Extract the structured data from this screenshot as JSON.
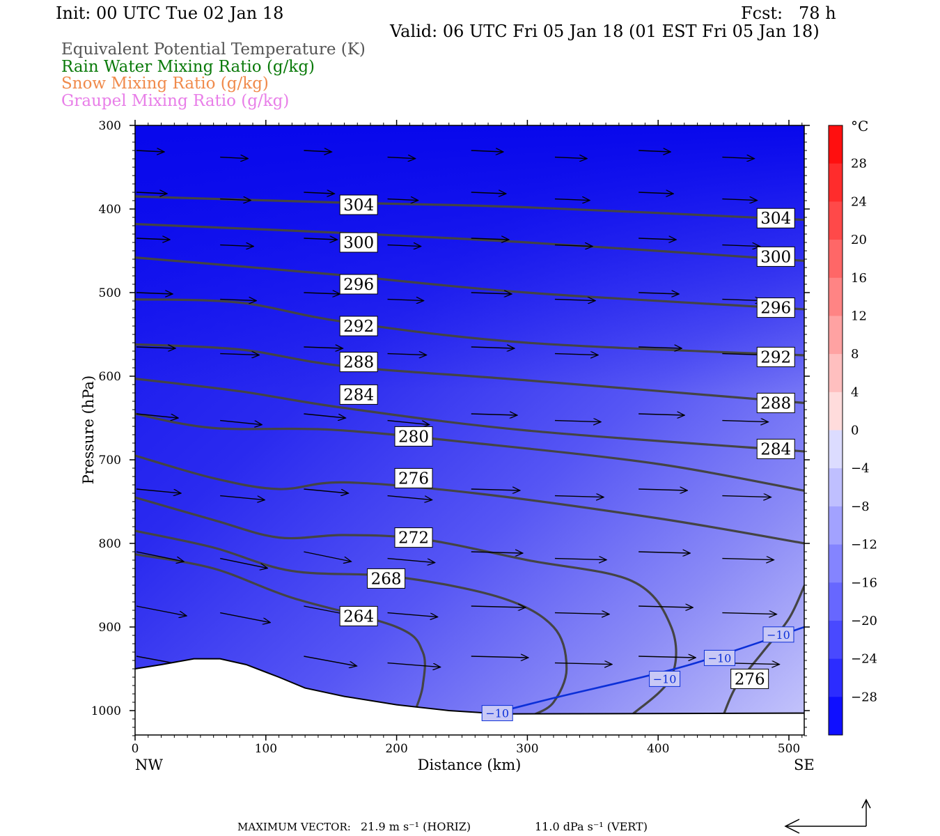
{
  "header": {
    "init": "Init: 00 UTC Tue 02 Jan 18",
    "fcst": "Fcst:   78 h",
    "valid": "Valid: 06 UTC Fri 05 Jan 18 (01 EST Fri 05 Jan 18)"
  },
  "legend": [
    {
      "text": "Equivalent Potential Temperature (K)",
      "color": "#555555"
    },
    {
      "text": "Rain Water Mixing Ratio (g/kg)",
      "color": "#0a7a0a"
    },
    {
      "text": "Snow Mixing Ratio (g/kg)",
      "color": "#f08a4b"
    },
    {
      "text": "Graupel Mixing Ratio (g/kg)",
      "color": "#e87ee8"
    }
  ],
  "footer": {
    "max_vector_label": "MAXIMUM VECTOR:",
    "horiz": "21.9 m s⁻¹ (HORIZ)",
    "vert": "11.0 dPa s⁻¹ (VERT)"
  },
  "chart_data": {
    "type": "cross-section",
    "xlabel": "Distance (km)",
    "ylabel": "Pressure (hPa)",
    "xlim": [
      0,
      512
    ],
    "ylim": [
      1030,
      300
    ],
    "x_ticks": [
      0,
      100,
      200,
      300,
      400,
      500
    ],
    "y_ticks": [
      300,
      400,
      500,
      600,
      700,
      800,
      900,
      1000
    ],
    "x_end_labels": {
      "left": "NW",
      "right": "SE"
    },
    "colorbar": {
      "unit": "°C",
      "ticks": [
        28,
        24,
        20,
        16,
        12,
        8,
        4,
        0,
        -4,
        -8,
        -12,
        -16,
        -20,
        -24,
        -28
      ],
      "range": [
        -32,
        32
      ]
    },
    "theta_e_contours": [
      {
        "value": 304,
        "points": [
          [
            0,
            385
          ],
          [
            150,
            392
          ],
          [
            300,
            398
          ],
          [
            512,
            413
          ]
        ],
        "labels": [
          [
            171,
            395
          ],
          [
            490,
            411
          ]
        ]
      },
      {
        "value": 300,
        "points": [
          [
            0,
            418
          ],
          [
            150,
            428
          ],
          [
            300,
            440
          ],
          [
            512,
            462
          ]
        ],
        "labels": [
          [
            171,
            440
          ],
          [
            490,
            457
          ]
        ]
      },
      {
        "value": 296,
        "points": [
          [
            0,
            458
          ],
          [
            150,
            478
          ],
          [
            300,
            500
          ],
          [
            512,
            520
          ]
        ],
        "labels": [
          [
            171,
            490
          ],
          [
            490,
            518
          ]
        ]
      },
      {
        "value": 292,
        "points": [
          [
            0,
            508
          ],
          [
            80,
            512
          ],
          [
            160,
            535
          ],
          [
            300,
            560
          ],
          [
            512,
            575
          ]
        ],
        "labels": [
          [
            171,
            540
          ],
          [
            490,
            577
          ]
        ]
      },
      {
        "value": 288,
        "points": [
          [
            0,
            562
          ],
          [
            80,
            568
          ],
          [
            160,
            588
          ],
          [
            300,
            605
          ],
          [
            512,
            632
          ]
        ],
        "labels": [
          [
            171,
            583
          ],
          [
            490,
            632
          ]
        ]
      },
      {
        "value": 284,
        "points": [
          [
            0,
            603
          ],
          [
            80,
            618
          ],
          [
            160,
            638
          ],
          [
            300,
            665
          ],
          [
            512,
            690
          ]
        ],
        "labels": [
          [
            171,
            622
          ],
          [
            490,
            687
          ]
        ]
      },
      {
        "value": 280,
        "points": [
          [
            0,
            645
          ],
          [
            60,
            662
          ],
          [
            150,
            664
          ],
          [
            260,
            680
          ],
          [
            400,
            705
          ],
          [
            512,
            737
          ]
        ],
        "labels": [
          [
            213,
            672
          ]
        ]
      },
      {
        "value": 276,
        "points": [
          [
            0,
            695
          ],
          [
            60,
            722
          ],
          [
            110,
            735
          ],
          [
            160,
            727
          ],
          [
            260,
            740
          ],
          [
            400,
            770
          ],
          [
            512,
            800
          ]
        ],
        "labels": [
          [
            213,
            722
          ]
        ]
      },
      {
        "value": 272,
        "points": [
          [
            0,
            745
          ],
          [
            60,
            772
          ],
          [
            110,
            793
          ],
          [
            160,
            790
          ],
          [
            220,
            795
          ],
          [
            300,
            820
          ],
          [
            380,
            845
          ],
          [
            410,
            900
          ],
          [
            410,
            960
          ],
          [
            380,
            1005
          ]
        ],
        "labels": [
          [
            213,
            793
          ]
        ]
      },
      {
        "value": 268,
        "points": [
          [
            0,
            785
          ],
          [
            60,
            805
          ],
          [
            120,
            833
          ],
          [
            200,
            840
          ],
          [
            280,
            865
          ],
          [
            320,
            900
          ],
          [
            330,
            950
          ],
          [
            320,
            990
          ],
          [
            305,
            1005
          ]
        ],
        "labels": [
          [
            192,
            842
          ]
        ]
      },
      {
        "value": 264,
        "points": [
          [
            0,
            813
          ],
          [
            60,
            830
          ],
          [
            120,
            865
          ],
          [
            200,
            900
          ],
          [
            220,
            930
          ],
          [
            220,
            970
          ],
          [
            215,
            997
          ]
        ],
        "labels": [
          [
            171,
            887
          ]
        ]
      },
      {
        "value": 276,
        "points": [
          [
            512,
            850
          ],
          [
            500,
            890
          ],
          [
            480,
            930
          ],
          [
            460,
            970
          ],
          [
            450,
            1005
          ]
        ],
        "labels": [
          [
            470,
            962
          ]
        ]
      }
    ],
    "temperature_contours": [
      {
        "value": -10,
        "points": [
          [
            270,
            1005
          ],
          [
            320,
            985
          ],
          [
            420,
            947
          ],
          [
            512,
            900
          ]
        ],
        "labels": [
          [
            277,
            1003
          ],
          [
            405,
            962
          ],
          [
            447,
            937
          ],
          [
            492,
            909
          ]
        ]
      }
    ],
    "terrain_pressure": [
      [
        0,
        950
      ],
      [
        20,
        945
      ],
      [
        45,
        938
      ],
      [
        65,
        938
      ],
      [
        85,
        945
      ],
      [
        110,
        960
      ],
      [
        130,
        973
      ],
      [
        160,
        983
      ],
      [
        200,
        993
      ],
      [
        240,
        1000
      ],
      [
        280,
        1004
      ],
      [
        512,
        1003
      ]
    ]
  }
}
